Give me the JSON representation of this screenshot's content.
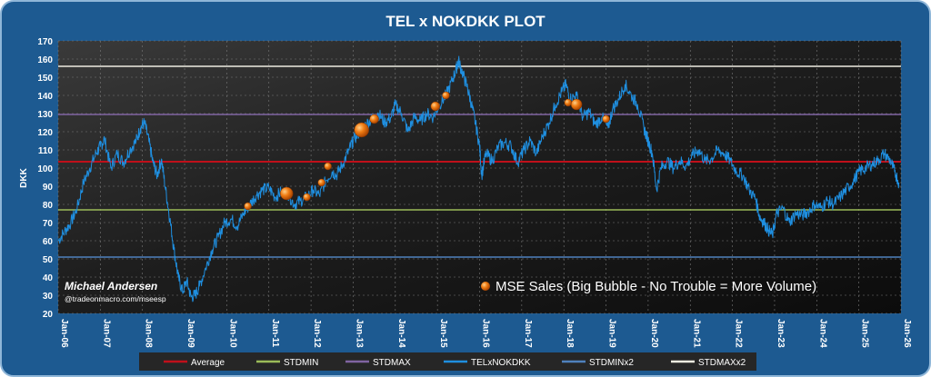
{
  "chart_data": {
    "type": "line",
    "title": "TEL x NOKDKK PLOT",
    "ylabel": "DKK",
    "xlabel": "",
    "ylim": [
      20,
      170
    ],
    "y_ticks": [
      20,
      30,
      40,
      50,
      60,
      70,
      80,
      90,
      100,
      110,
      120,
      130,
      140,
      150,
      160,
      170
    ],
    "x_ticks": [
      "Jan-06",
      "Jan-07",
      "Jan-08",
      "Jan-09",
      "Jan-10",
      "Jan-11",
      "Jan-12",
      "Jan-13",
      "Jan-14",
      "Jan-15",
      "Jan-16",
      "Jan-17",
      "Jan-18",
      "Jan-19",
      "Jan-20",
      "Jan-21",
      "Jan-22",
      "Jan-23",
      "Jan-24",
      "Jan-25",
      "Jan-26"
    ],
    "grid": true,
    "horizontal_lines": [
      {
        "name": "Average",
        "value": 103.5,
        "color": "#c0101a"
      },
      {
        "name": "STDMIN",
        "value": 77,
        "color": "#9bbb59"
      },
      {
        "name": "STDMAX",
        "value": 129.5,
        "color": "#8064a2"
      },
      {
        "name": "STDMINx2",
        "value": 51,
        "color": "#4f81bd"
      },
      {
        "name": "STDMAXx2",
        "value": 156,
        "color": "#eeece1"
      }
    ],
    "series": [
      {
        "name": "TELxNOKDKK",
        "color": "#1f8fe0",
        "points": [
          [
            2006.0,
            60
          ],
          [
            2006.15,
            65
          ],
          [
            2006.3,
            70
          ],
          [
            2006.45,
            78
          ],
          [
            2006.6,
            92
          ],
          [
            2006.75,
            100
          ],
          [
            2006.9,
            108
          ],
          [
            2007.0,
            112
          ],
          [
            2007.1,
            116
          ],
          [
            2007.25,
            100
          ],
          [
            2007.4,
            108
          ],
          [
            2007.55,
            103
          ],
          [
            2007.7,
            110
          ],
          [
            2007.85,
            115
          ],
          [
            2007.95,
            122
          ],
          [
            2008.05,
            125
          ],
          [
            2008.15,
            115
          ],
          [
            2008.25,
            103
          ],
          [
            2008.35,
            96
          ],
          [
            2008.45,
            105
          ],
          [
            2008.55,
            88
          ],
          [
            2008.65,
            72
          ],
          [
            2008.75,
            55
          ],
          [
            2008.85,
            40
          ],
          [
            2008.95,
            32
          ],
          [
            2009.05,
            38
          ],
          [
            2009.15,
            29
          ],
          [
            2009.25,
            30
          ],
          [
            2009.35,
            35
          ],
          [
            2009.5,
            45
          ],
          [
            2009.65,
            55
          ],
          [
            2009.8,
            62
          ],
          [
            2009.95,
            70
          ],
          [
            2010.1,
            72
          ],
          [
            2010.25,
            68
          ],
          [
            2010.4,
            75
          ],
          [
            2010.55,
            80
          ],
          [
            2010.7,
            85
          ],
          [
            2010.85,
            88
          ],
          [
            2011.0,
            89
          ],
          [
            2011.15,
            84
          ],
          [
            2011.3,
            87
          ],
          [
            2011.45,
            86
          ],
          [
            2011.6,
            80
          ],
          [
            2011.75,
            82
          ],
          [
            2011.9,
            84
          ],
          [
            2012.05,
            88
          ],
          [
            2012.2,
            85
          ],
          [
            2012.35,
            93
          ],
          [
            2012.5,
            98
          ],
          [
            2012.6,
            96
          ],
          [
            2012.75,
            102
          ],
          [
            2012.9,
            110
          ],
          [
            2013.0,
            115
          ],
          [
            2013.15,
            120
          ],
          [
            2013.3,
            124
          ],
          [
            2013.45,
            127
          ],
          [
            2013.6,
            130
          ],
          [
            2013.75,
            125
          ],
          [
            2013.9,
            128
          ],
          [
            2014.0,
            135
          ],
          [
            2014.15,
            130
          ],
          [
            2014.3,
            120
          ],
          [
            2014.45,
            128
          ],
          [
            2014.6,
            126
          ],
          [
            2014.75,
            130
          ],
          [
            2014.9,
            128
          ],
          [
            2015.05,
            135
          ],
          [
            2015.2,
            140
          ],
          [
            2015.35,
            148
          ],
          [
            2015.45,
            155
          ],
          [
            2015.5,
            159
          ],
          [
            2015.6,
            152
          ],
          [
            2015.7,
            145
          ],
          [
            2015.8,
            136
          ],
          [
            2015.9,
            125
          ],
          [
            2016.0,
            112
          ],
          [
            2016.05,
            96
          ],
          [
            2016.15,
            108
          ],
          [
            2016.3,
            104
          ],
          [
            2016.45,
            112
          ],
          [
            2016.6,
            114
          ],
          [
            2016.75,
            112
          ],
          [
            2016.9,
            103
          ],
          [
            2017.05,
            110
          ],
          [
            2017.2,
            115
          ],
          [
            2017.35,
            108
          ],
          [
            2017.5,
            118
          ],
          [
            2017.65,
            125
          ],
          [
            2017.8,
            135
          ],
          [
            2017.95,
            142
          ],
          [
            2018.05,
            146
          ],
          [
            2018.15,
            138
          ],
          [
            2018.3,
            140
          ],
          [
            2018.45,
            128
          ],
          [
            2018.6,
            131
          ],
          [
            2018.75,
            124
          ],
          [
            2018.9,
            128
          ],
          [
            2019.05,
            122
          ],
          [
            2019.15,
            132
          ],
          [
            2019.3,
            138
          ],
          [
            2019.45,
            146
          ],
          [
            2019.6,
            140
          ],
          [
            2019.75,
            135
          ],
          [
            2019.9,
            122
          ],
          [
            2020.0,
            115
          ],
          [
            2020.1,
            108
          ],
          [
            2020.2,
            88
          ],
          [
            2020.3,
            100
          ],
          [
            2020.45,
            104
          ],
          [
            2020.6,
            100
          ],
          [
            2020.75,
            104
          ],
          [
            2020.9,
            101
          ],
          [
            2021.05,
            107
          ],
          [
            2021.2,
            110
          ],
          [
            2021.35,
            104
          ],
          [
            2021.5,
            105
          ],
          [
            2021.65,
            110
          ],
          [
            2021.8,
            108
          ],
          [
            2021.95,
            104
          ],
          [
            2022.1,
            98
          ],
          [
            2022.25,
            96
          ],
          [
            2022.4,
            88
          ],
          [
            2022.55,
            83
          ],
          [
            2022.65,
            73
          ],
          [
            2022.75,
            70
          ],
          [
            2022.85,
            66
          ],
          [
            2022.95,
            63
          ],
          [
            2023.05,
            75
          ],
          [
            2023.2,
            78
          ],
          [
            2023.35,
            70
          ],
          [
            2023.5,
            75
          ],
          [
            2023.65,
            74
          ],
          [
            2023.8,
            76
          ],
          [
            2023.95,
            80
          ],
          [
            2024.1,
            78
          ],
          [
            2024.25,
            82
          ],
          [
            2024.4,
            80
          ],
          [
            2024.55,
            84
          ],
          [
            2024.7,
            88
          ],
          [
            2024.85,
            92
          ],
          [
            2025.0,
            98
          ],
          [
            2025.15,
            100
          ],
          [
            2025.3,
            102
          ],
          [
            2025.45,
            104
          ],
          [
            2025.6,
            108
          ],
          [
            2025.75,
            104
          ],
          [
            2025.85,
            98
          ],
          [
            2025.95,
            92
          ]
        ]
      }
    ],
    "bubbles": {
      "name": "MSE Sales (Big Bubble - No Trouble = More Volume)",
      "color": "#e8700c",
      "points": [
        {
          "x": 2010.5,
          "y": 79,
          "size": 4
        },
        {
          "x": 2011.42,
          "y": 86,
          "size": 7
        },
        {
          "x": 2011.9,
          "y": 84,
          "size": 4
        },
        {
          "x": 2012.25,
          "y": 92,
          "size": 4
        },
        {
          "x": 2012.4,
          "y": 101,
          "size": 4
        },
        {
          "x": 2013.2,
          "y": 121,
          "size": 8
        },
        {
          "x": 2013.5,
          "y": 127,
          "size": 5
        },
        {
          "x": 2014.95,
          "y": 134,
          "size": 5
        },
        {
          "x": 2015.2,
          "y": 140,
          "size": 4
        },
        {
          "x": 2018.1,
          "y": 136,
          "size": 4
        },
        {
          "x": 2018.3,
          "y": 135,
          "size": 6
        },
        {
          "x": 2019.0,
          "y": 127,
          "size": 4
        }
      ]
    },
    "annotations": {
      "author": "Michael Andersen",
      "handle": "@tradeonmacro.com/mseesp"
    },
    "legend": {
      "placement": "bottom",
      "entries": [
        {
          "label": "Average",
          "color": "#c0101a"
        },
        {
          "label": "STDMIN",
          "color": "#9bbb59"
        },
        {
          "label": "STDMAX",
          "color": "#8064a2"
        },
        {
          "label": "TELxNOKDKK",
          "color": "#1f8fe0"
        },
        {
          "label": "STDMINx2",
          "color": "#4f81bd"
        },
        {
          "label": "STDMAXx2",
          "color": "#eeece1"
        }
      ]
    }
  }
}
